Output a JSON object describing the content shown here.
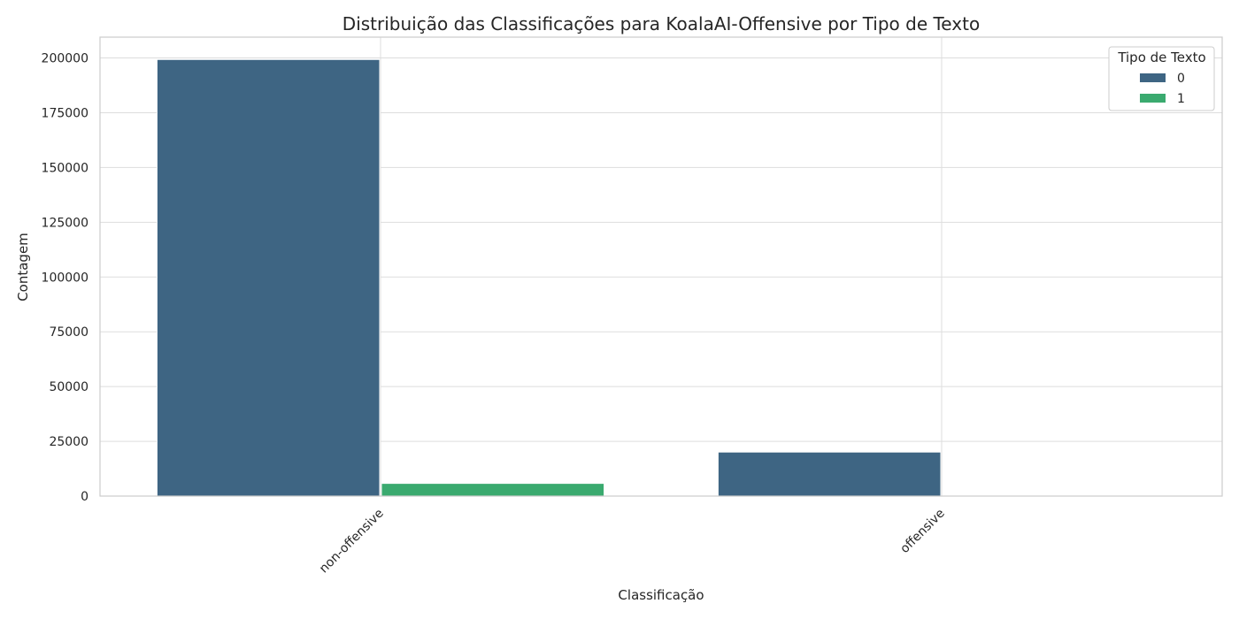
{
  "chart_data": {
    "type": "bar",
    "title": "Distribuição das Classificações para KoalaAI-Offensive por Tipo de Texto",
    "xlabel": "Classificação",
    "ylabel": "Contagem",
    "categories": [
      "non-offensive",
      "offensive"
    ],
    "series": [
      {
        "name": "0",
        "values": [
          199300,
          20100
        ],
        "color": "#3e6583"
      },
      {
        "name": "1",
        "values": [
          5800,
          0
        ],
        "color": "#3aaa6f"
      }
    ],
    "ylim": [
      0,
      209500
    ],
    "yticks": [
      0,
      25000,
      50000,
      75000,
      100000,
      125000,
      150000,
      175000,
      200000
    ],
    "ytick_labels": [
      "0",
      "25000",
      "50000",
      "75000",
      "100000",
      "125000",
      "150000",
      "175000",
      "200000"
    ],
    "legend": {
      "title": "Tipo de Texto",
      "labels": [
        "0",
        "1"
      ],
      "placement": "top-right"
    },
    "grid": true
  }
}
